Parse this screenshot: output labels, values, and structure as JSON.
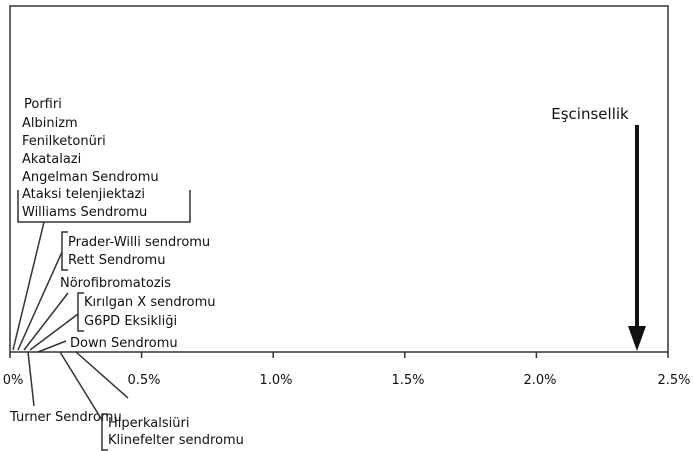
{
  "chart_data": {
    "type": "scatter",
    "title": "",
    "xlabel": "",
    "ylabel": "",
    "xlim": [
      0,
      2.5
    ],
    "x_unit": "%",
    "x_ticks": [
      "0%",
      "0.5%",
      "1.0%",
      "1.5%",
      "2.0%",
      "2.5%"
    ],
    "grid": false,
    "points": [
      {
        "label": "Porfiri",
        "x": 0.0
      },
      {
        "label": "Albinizm",
        "x": 0.0
      },
      {
        "label": "Fenilketonüri",
        "x": 0.0
      },
      {
        "label": "Akatalazi",
        "x": 0.0
      },
      {
        "label": "Angelman Sendromu",
        "x": 0.0
      },
      {
        "label": "Ataksi telenjiektazi",
        "x": 0.0
      },
      {
        "label": "Williams Sendromu",
        "x": 0.01
      },
      {
        "label": "Prader-Willi sendromu",
        "x": 0.02
      },
      {
        "label": "Rett Sendromu",
        "x": 0.02
      },
      {
        "label": "Nörofibromatozis",
        "x": 0.03
      },
      {
        "label": "Kırılgan X sendromu",
        "x": 0.04
      },
      {
        "label": "G6PD Eksikliği",
        "x": 0.04
      },
      {
        "label": "Down Sendromu",
        "x": 0.07
      },
      {
        "label": "Turner Sendromu",
        "x": 0.04
      },
      {
        "label": "Hiperkalsiüri",
        "x": 0.1
      },
      {
        "label": "Klinefelter sendromu",
        "x": 0.1
      }
    ],
    "annotations": [
      {
        "label": "Eşcinsellik",
        "x": 2.38,
        "style": "arrow-down"
      }
    ]
  }
}
